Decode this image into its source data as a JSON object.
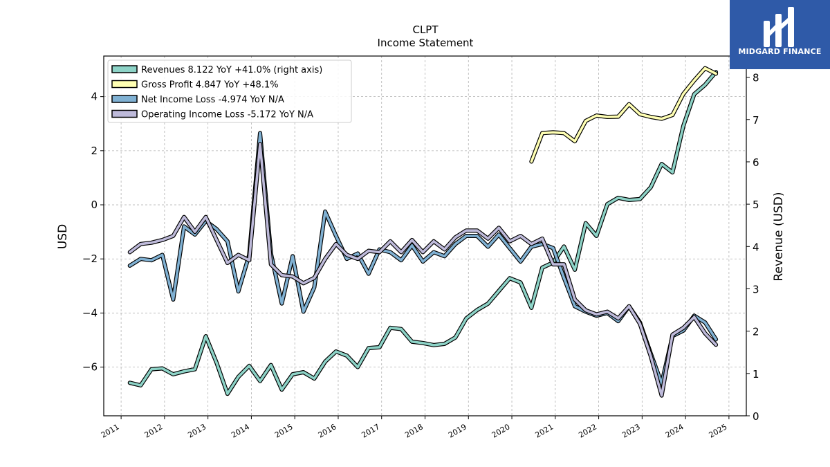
{
  "logo": {
    "text": "MIDGARD FINANCE"
  },
  "chart_data": {
    "type": "line",
    "title": "CLPT",
    "subtitle": "Income Statement",
    "ylabel": "USD",
    "ylabel_right": "Revenue (USD)",
    "ylim": [
      -7.8,
      5.5
    ],
    "ylim_right": [
      0,
      8.5
    ],
    "xlim": [
      2010.6,
      2025.4
    ],
    "x_ticks": [
      2011,
      2012,
      2013,
      2014,
      2015,
      2016,
      2017,
      2018,
      2019,
      2020,
      2021,
      2022,
      2023,
      2024,
      2025
    ],
    "y_ticks": [
      -6,
      -4,
      -2,
      0,
      2,
      4
    ],
    "y_ticks_right": [
      0,
      1,
      2,
      3,
      4,
      5,
      6,
      7,
      8
    ],
    "grid": true,
    "legend_position": "top-left",
    "series": [
      {
        "name": "Revenues  8.122 YoY +41.0% (right axis)",
        "axis": "right",
        "color": "#8dd3c7",
        "x": [
          2011.2,
          2011.45,
          2011.7,
          2011.95,
          2012.2,
          2012.45,
          2012.7,
          2012.95,
          2013.2,
          2013.45,
          2013.7,
          2013.95,
          2014.2,
          2014.45,
          2014.7,
          2014.95,
          2015.2,
          2015.45,
          2015.7,
          2015.95,
          2016.2,
          2016.45,
          2016.7,
          2016.95,
          2017.2,
          2017.45,
          2017.7,
          2017.95,
          2018.2,
          2018.45,
          2018.7,
          2018.95,
          2019.2,
          2019.45,
          2019.7,
          2019.95,
          2020.2,
          2020.45,
          2020.7,
          2020.95,
          2021.2,
          2021.45,
          2021.7,
          2021.95,
          2022.2,
          2022.45,
          2022.7,
          2022.95,
          2023.2,
          2023.45,
          2023.7,
          2023.95,
          2024.2,
          2024.45,
          2024.7
        ],
        "y": [
          0.78,
          0.72,
          1.1,
          1.12,
          0.98,
          1.05,
          1.1,
          1.88,
          1.25,
          0.52,
          0.92,
          1.18,
          0.82,
          1.2,
          0.62,
          0.98,
          1.03,
          0.88,
          1.28,
          1.52,
          1.42,
          1.15,
          1.6,
          1.62,
          2.08,
          2.05,
          1.75,
          1.72,
          1.67,
          1.7,
          1.85,
          2.3,
          2.5,
          2.65,
          2.95,
          3.25,
          3.15,
          2.55,
          3.5,
          3.62,
          4.0,
          3.45,
          4.55,
          4.25,
          5.0,
          5.15,
          5.1,
          5.12,
          5.4,
          5.95,
          5.75,
          6.85,
          7.6,
          7.82,
          8.122
        ]
      },
      {
        "name": "Gross Profit  4.847 YoY +48.1%",
        "axis": "left",
        "color": "#ffffb3",
        "x": [
          2020.45,
          2020.7,
          2020.95,
          2021.2,
          2021.45,
          2021.7,
          2021.95,
          2022.2,
          2022.45,
          2022.7,
          2022.95,
          2023.2,
          2023.45,
          2023.7,
          2023.95,
          2024.2,
          2024.45,
          2024.7
        ],
        "y": [
          1.6,
          2.65,
          2.68,
          2.65,
          2.35,
          3.1,
          3.3,
          3.25,
          3.26,
          3.72,
          3.35,
          3.25,
          3.18,
          3.32,
          4.1,
          4.6,
          5.05,
          4.847
        ]
      },
      {
        "name": "Net Income Loss  -4.974 YoY N/A",
        "axis": "left",
        "color": "#80b1d3",
        "x": [
          2011.2,
          2011.45,
          2011.7,
          2011.95,
          2012.2,
          2012.45,
          2012.7,
          2012.95,
          2013.2,
          2013.45,
          2013.7,
          2013.95,
          2014.2,
          2014.45,
          2014.7,
          2014.95,
          2015.2,
          2015.45,
          2015.7,
          2015.95,
          2016.2,
          2016.45,
          2016.7,
          2016.95,
          2017.2,
          2017.45,
          2017.7,
          2017.95,
          2018.2,
          2018.45,
          2018.7,
          2018.95,
          2019.2,
          2019.45,
          2019.7,
          2019.95,
          2020.2,
          2020.45,
          2020.7,
          2020.95,
          2021.2,
          2021.45,
          2021.7,
          2021.95,
          2022.2,
          2022.45,
          2022.7,
          2022.95,
          2023.2,
          2023.45,
          2023.7,
          2023.95,
          2024.2,
          2024.45,
          2024.7
        ],
        "y": [
          -2.25,
          -2.0,
          -2.05,
          -1.85,
          -3.5,
          -0.8,
          -1.1,
          -0.6,
          -0.9,
          -1.35,
          -3.2,
          -1.85,
          2.65,
          -1.8,
          -3.65,
          -1.9,
          -3.95,
          -3.05,
          -0.25,
          -1.15,
          -2.0,
          -1.8,
          -2.55,
          -1.65,
          -1.75,
          -2.05,
          -1.5,
          -2.1,
          -1.75,
          -1.9,
          -1.45,
          -1.15,
          -1.15,
          -1.55,
          -1.1,
          -1.6,
          -2.1,
          -1.55,
          -1.45,
          -1.6,
          -2.7,
          -3.75,
          -3.95,
          -4.1,
          -4.0,
          -4.3,
          -3.75,
          -4.35,
          -5.5,
          -6.6,
          -4.85,
          -4.65,
          -4.1,
          -4.35,
          -4.974
        ]
      },
      {
        "name": "Operating Income Loss  -5.172 YoY N/A",
        "axis": "left",
        "color": "#bebada",
        "x": [
          2011.2,
          2011.45,
          2011.7,
          2011.95,
          2012.2,
          2012.45,
          2012.7,
          2012.95,
          2013.2,
          2013.45,
          2013.7,
          2013.95,
          2014.2,
          2014.45,
          2014.7,
          2014.95,
          2015.2,
          2015.45,
          2015.7,
          2015.95,
          2016.2,
          2016.45,
          2016.7,
          2016.95,
          2017.2,
          2017.45,
          2017.7,
          2017.95,
          2018.2,
          2018.45,
          2018.7,
          2018.95,
          2019.2,
          2019.45,
          2019.7,
          2019.95,
          2020.2,
          2020.45,
          2020.7,
          2020.95,
          2021.2,
          2021.45,
          2021.7,
          2021.95,
          2022.2,
          2022.45,
          2022.7,
          2022.95,
          2023.2,
          2023.45,
          2023.7,
          2023.95,
          2024.2,
          2024.45,
          2024.7
        ],
        "y": [
          -1.75,
          -1.45,
          -1.4,
          -1.3,
          -1.15,
          -0.45,
          -1.0,
          -0.45,
          -1.3,
          -2.15,
          -1.85,
          -2.05,
          2.25,
          -2.2,
          -2.6,
          -2.65,
          -2.9,
          -2.7,
          -2.0,
          -1.45,
          -1.85,
          -2.0,
          -1.7,
          -1.75,
          -1.35,
          -1.75,
          -1.3,
          -1.75,
          -1.35,
          -1.65,
          -1.2,
          -0.95,
          -0.95,
          -1.25,
          -0.85,
          -1.35,
          -1.15,
          -1.45,
          -1.25,
          -2.2,
          -2.2,
          -3.5,
          -3.9,
          -4.05,
          -3.95,
          -4.2,
          -3.75,
          -4.4,
          -5.6,
          -7.05,
          -4.8,
          -4.55,
          -4.15,
          -4.75,
          -5.172
        ]
      }
    ]
  }
}
